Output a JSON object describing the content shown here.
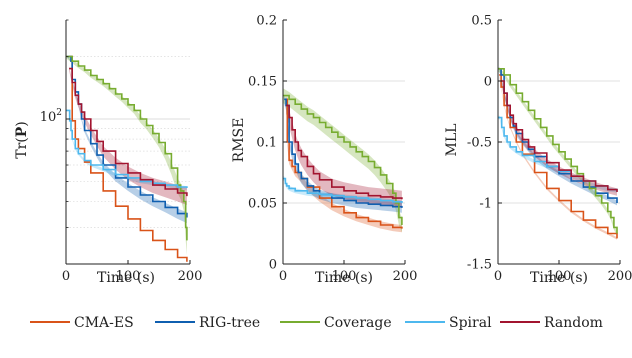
{
  "series_colors": {
    "CMA-ES": "#d95319",
    "RIG-tree": "#0f5fb0",
    "Coverage": "#77ac30",
    "Spiral": "#4db8ee",
    "Random": "#a2142f"
  },
  "legend": {
    "placement": "bottom",
    "entries": [
      "CMA-ES",
      "RIG-tree",
      "Coverage",
      "Spiral",
      "Random"
    ]
  },
  "chart_data": [
    {
      "type": "line",
      "xlabel": "Time (s)",
      "ylabel_text": "Tr(",
      "ylabel_bold": "P",
      "ylabel_close": ")",
      "xlim": [
        0,
        200
      ],
      "ylim": [
        20,
        300
      ],
      "yscale": "log",
      "xticks": [
        0,
        100,
        200
      ],
      "xtick_labels": [
        "0",
        "100",
        "200"
      ],
      "yticks": [
        100
      ],
      "ytick_labels": [
        "10^2"
      ],
      "ytick_base": "10",
      "ytick_exp": "2",
      "grid": true,
      "series": [
        {
          "name": "CMA-ES",
          "x": [
            5,
            10,
            15,
            20,
            30,
            40,
            60,
            80,
            100,
            120,
            140,
            160,
            180,
            195
          ],
          "y": [
            200,
            98,
            80,
            72,
            62,
            55,
            45,
            38,
            33,
            29,
            26,
            23.5,
            21.5,
            20.5
          ],
          "band": 0
        },
        {
          "name": "RIG-tree",
          "x": [
            2,
            8,
            10,
            15,
            20,
            25,
            30,
            40,
            50,
            60,
            80,
            100,
            120,
            140,
            160,
            180,
            195
          ],
          "y": [
            200,
            190,
            155,
            135,
            118,
            100,
            88,
            76,
            67,
            60,
            52,
            47,
            43,
            40,
            37.5,
            35,
            33.5
          ],
          "band": 2
        },
        {
          "name": "Coverage",
          "x": [
            0,
            10,
            20,
            30,
            40,
            50,
            60,
            70,
            80,
            90,
            100,
            110,
            120,
            130,
            140,
            150,
            160,
            170,
            180,
            185,
            190,
            193,
            195
          ],
          "y": [
            200,
            190,
            180,
            172,
            162,
            155,
            148,
            140,
            132,
            125,
            117,
            110,
            100,
            93,
            85,
            77,
            68,
            58,
            48,
            45,
            40,
            30,
            26
          ],
          "band": 4
        },
        {
          "name": "Spiral",
          "x": [
            0,
            3,
            6,
            8,
            10,
            15,
            20,
            30,
            40,
            60,
            80,
            100,
            120,
            140,
            160,
            180,
            195
          ],
          "y": [
            110,
            110,
            98,
            88,
            80,
            72,
            68,
            63,
            60,
            57,
            54,
            52,
            50,
            49,
            48,
            47,
            46.5
          ],
          "band": 1
        },
        {
          "name": "Random",
          "x": [
            5,
            10,
            15,
            20,
            25,
            30,
            40,
            50,
            60,
            80,
            100,
            120,
            140,
            160,
            180,
            195
          ],
          "y": [
            175,
            150,
            130,
            118,
            108,
            100,
            88,
            78,
            70,
            61,
            55,
            51,
            48,
            46,
            44,
            42.5
          ],
          "band": 4
        }
      ]
    },
    {
      "type": "line",
      "xlabel": "Time (s)",
      "ylabel": "RMSE",
      "xlim": [
        0,
        200
      ],
      "ylim": [
        0,
        0.2
      ],
      "xticks": [
        0,
        100,
        200
      ],
      "xtick_labels": [
        "0",
        "100",
        "200"
      ],
      "yticks": [
        0,
        0.05,
        0.1,
        0.15,
        0.2
      ],
      "ytick_labels": [
        "0",
        "0.05",
        "0.1",
        "0.15",
        "0.2"
      ],
      "grid": true,
      "series": [
        {
          "name": "CMA-ES",
          "x": [
            5,
            7,
            10,
            15,
            20,
            30,
            40,
            60,
            80,
            100,
            120,
            140,
            160,
            180,
            195
          ],
          "y": [
            0.135,
            0.1,
            0.085,
            0.08,
            0.075,
            0.07,
            0.063,
            0.054,
            0.047,
            0.042,
            0.038,
            0.035,
            0.032,
            0.03,
            0.029
          ],
          "band": 0.003
        },
        {
          "name": "RIG-tree",
          "x": [
            2,
            5,
            10,
            15,
            20,
            25,
            30,
            40,
            50,
            60,
            80,
            100,
            120,
            140,
            160,
            180,
            195
          ],
          "y": [
            0.135,
            0.13,
            0.1,
            0.09,
            0.082,
            0.075,
            0.07,
            0.064,
            0.06,
            0.057,
            0.054,
            0.052,
            0.05,
            0.049,
            0.048,
            0.047,
            0.046
          ],
          "band": 0.004
        },
        {
          "name": "Coverage",
          "x": [
            0,
            10,
            20,
            30,
            40,
            50,
            60,
            70,
            80,
            90,
            100,
            110,
            120,
            130,
            140,
            150,
            160,
            170,
            180,
            185,
            190,
            195
          ],
          "y": [
            0.138,
            0.135,
            0.131,
            0.127,
            0.123,
            0.12,
            0.116,
            0.112,
            0.108,
            0.104,
            0.1,
            0.096,
            0.092,
            0.088,
            0.084,
            0.079,
            0.073,
            0.066,
            0.058,
            0.05,
            0.038,
            0.032
          ],
          "band": 0.006
        },
        {
          "name": "Spiral",
          "x": [
            0,
            2,
            4,
            6,
            10,
            20,
            40,
            60,
            80,
            100,
            120,
            140,
            160,
            180,
            195
          ],
          "y": [
            0.07,
            0.07,
            0.066,
            0.064,
            0.062,
            0.06,
            0.058,
            0.057,
            0.056,
            0.055,
            0.054,
            0.053,
            0.052,
            0.051,
            0.05
          ],
          "band": 0.002
        },
        {
          "name": "Random",
          "x": [
            5,
            10,
            15,
            20,
            25,
            30,
            40,
            50,
            60,
            80,
            100,
            120,
            140,
            160,
            180,
            195
          ],
          "y": [
            0.13,
            0.12,
            0.11,
            0.1,
            0.093,
            0.088,
            0.08,
            0.074,
            0.069,
            0.063,
            0.06,
            0.058,
            0.056,
            0.055,
            0.054,
            0.053
          ],
          "band": 0.007
        }
      ]
    },
    {
      "type": "line",
      "xlabel": "Time (s)",
      "ylabel": "MLL",
      "xlim": [
        0,
        200
      ],
      "ylim": [
        -1.5,
        0.5
      ],
      "xticks": [
        0,
        100,
        200
      ],
      "xtick_labels": [
        "0",
        "100",
        "200"
      ],
      "yticks": [
        -1.5,
        -1,
        -0.5,
        0,
        0.5
      ],
      "ytick_labels": [
        "-1.5",
        "-1",
        "-0.5",
        "0",
        "0.5"
      ],
      "grid": true,
      "series": [
        {
          "name": "CMA-ES",
          "x": [
            2,
            5,
            10,
            15,
            20,
            30,
            40,
            60,
            80,
            100,
            120,
            140,
            160,
            180,
            195
          ],
          "y": [
            0.05,
            -0.05,
            -0.2,
            -0.3,
            -0.38,
            -0.5,
            -0.6,
            -0.75,
            -0.88,
            -0.98,
            -1.07,
            -1.14,
            -1.2,
            -1.25,
            -1.29
          ],
          "band": 0.01
        },
        {
          "name": "RIG-tree",
          "x": [
            2,
            5,
            10,
            15,
            20,
            25,
            30,
            40,
            50,
            60,
            80,
            100,
            120,
            140,
            160,
            180,
            195
          ],
          "y": [
            0.1,
            0.05,
            -0.1,
            -0.2,
            -0.3,
            -0.37,
            -0.43,
            -0.5,
            -0.56,
            -0.62,
            -0.7,
            -0.76,
            -0.82,
            -0.87,
            -0.92,
            -0.96,
            -1.0
          ],
          "band": 0.02
        },
        {
          "name": "Coverage",
          "x": [
            0,
            10,
            20,
            30,
            40,
            50,
            60,
            70,
            80,
            90,
            100,
            110,
            120,
            130,
            140,
            150,
            160,
            170,
            180,
            185,
            190,
            195
          ],
          "y": [
            0.1,
            0.05,
            -0.03,
            -0.1,
            -0.17,
            -0.24,
            -0.31,
            -0.38,
            -0.45,
            -0.52,
            -0.58,
            -0.64,
            -0.7,
            -0.76,
            -0.82,
            -0.88,
            -0.94,
            -1.0,
            -1.07,
            -1.12,
            -1.2,
            -1.25
          ],
          "band": 0.02
        },
        {
          "name": "Spiral",
          "x": [
            0,
            3,
            6,
            10,
            15,
            20,
            30,
            40,
            60,
            80,
            100,
            120,
            140,
            160,
            180,
            195
          ],
          "y": [
            -0.3,
            -0.3,
            -0.38,
            -0.45,
            -0.5,
            -0.54,
            -0.58,
            -0.61,
            -0.66,
            -0.7,
            -0.74,
            -0.78,
            -0.82,
            -0.86,
            -0.89,
            -0.9
          ],
          "band": 0.015
        },
        {
          "name": "Random",
          "x": [
            5,
            10,
            15,
            20,
            25,
            30,
            40,
            50,
            60,
            80,
            100,
            120,
            140,
            160,
            180,
            195
          ],
          "y": [
            0.0,
            -0.1,
            -0.2,
            -0.28,
            -0.35,
            -0.4,
            -0.48,
            -0.54,
            -0.59,
            -0.67,
            -0.73,
            -0.78,
            -0.82,
            -0.86,
            -0.89,
            -0.91
          ],
          "band": 0.03
        }
      ]
    }
  ]
}
